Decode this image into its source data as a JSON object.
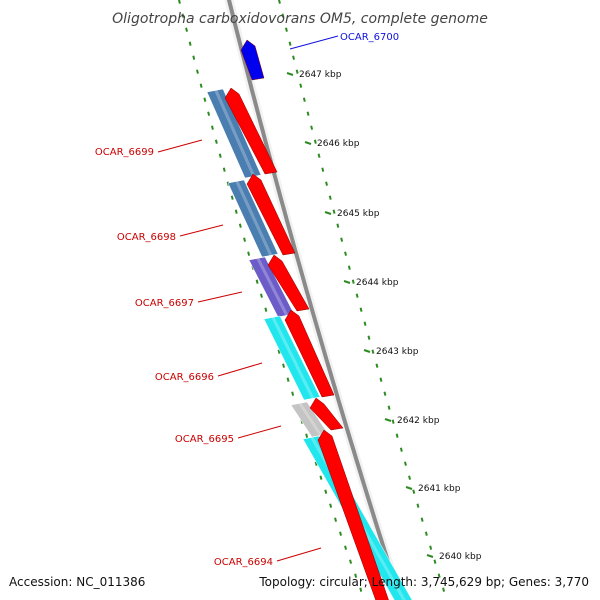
{
  "title": "Oligotropha carboxidovorans OM5, complete genome",
  "accession": "Accession: NC_011386",
  "summary": "Topology: circular; Length: 3,745,629 bp; Genes: 3,770",
  "colors": {
    "backbone": "#8a8a8a",
    "cds": "#ff0000",
    "cds_label": "#cc0000",
    "highlight": "#1010dd",
    "ticks": "#2e8b22"
  },
  "ticks": [
    {
      "label": "2647 kbp"
    },
    {
      "label": "2646 kbp"
    },
    {
      "label": "2645 kbp"
    },
    {
      "label": "2644 kbp"
    },
    {
      "label": "2643 kbp"
    },
    {
      "label": "2642 kbp"
    },
    {
      "label": "2641 kbp"
    },
    {
      "label": "2640 kbp"
    }
  ],
  "genes": [
    {
      "label": "OCAR_6700",
      "color": "#1010dd",
      "cog_color": ""
    },
    {
      "label": "OCAR_6699",
      "color": "#cc0000",
      "cog_color": "#4a7db0"
    },
    {
      "label": "OCAR_6698",
      "color": "#cc0000",
      "cog_color": "#4a7db0"
    },
    {
      "label": "OCAR_6697",
      "color": "#cc0000",
      "cog_color": "#6b5cc8"
    },
    {
      "label": "OCAR_6696",
      "color": "#cc0000",
      "cog_color": "#22e6ee"
    },
    {
      "label": "OCAR_6695",
      "color": "#cc0000",
      "cog_color": "#c4c4c4"
    },
    {
      "label": "OCAR_6694",
      "color": "#cc0000",
      "cog_color": "#22e6ee"
    }
  ]
}
